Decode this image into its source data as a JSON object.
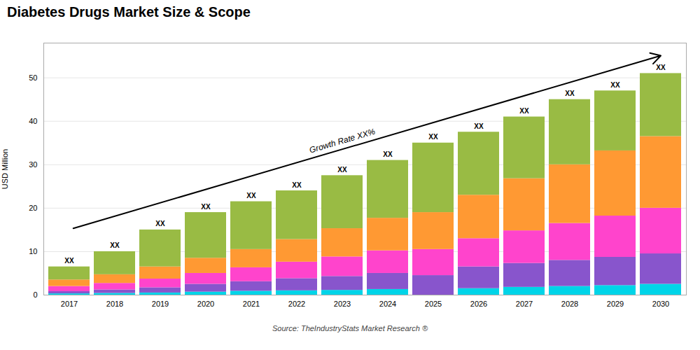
{
  "chart_data": {
    "type": "bar",
    "stacked": true,
    "title": "Diabetes Drugs Market Size & Scope",
    "ylabel": "USD Million",
    "caption": "Source: TheIndustryStats Market Research ®",
    "annotations": [
      "Growth Rate XX%"
    ],
    "categories": [
      "2017",
      "2018",
      "2019",
      "2020",
      "2021",
      "2022",
      "2023",
      "2024",
      "2025",
      "2026",
      "2027",
      "2028",
      "2029",
      "2030"
    ],
    "total_labels": [
      "XX",
      "XX",
      "XX",
      "XX",
      "XX",
      "XX",
      "XX",
      "XX",
      "XX",
      "XX",
      "XX",
      "XX",
      "XX",
      "XX"
    ],
    "series": [
      {
        "color": "#00d4e8",
        "values": [
          0.3,
          0.4,
          0.5,
          0.7,
          0.9,
          1.0,
          1.1,
          1.3,
          0.0,
          1.5,
          1.8,
          2.0,
          2.2,
          2.5
        ]
      },
      {
        "color": "#8855cc",
        "values": [
          0.5,
          0.8,
          1.2,
          1.8,
          2.2,
          2.8,
          3.2,
          3.7,
          4.5,
          5.0,
          5.5,
          6.0,
          6.5,
          7.0
        ]
      },
      {
        "color": "#ff44cc",
        "values": [
          1.2,
          1.5,
          2.0,
          2.5,
          3.2,
          3.8,
          4.5,
          5.2,
          6.0,
          6.5,
          7.5,
          8.5,
          9.5,
          10.5
        ]
      },
      {
        "color": "#ff9933",
        "values": [
          1.5,
          2.0,
          2.8,
          3.5,
          4.2,
          5.2,
          6.5,
          7.5,
          8.5,
          10.0,
          12.0,
          13.5,
          15.0,
          16.5
        ]
      },
      {
        "color": "#99bb44",
        "values": [
          3.0,
          5.3,
          8.5,
          10.5,
          11.0,
          11.2,
          12.2,
          13.3,
          16.0,
          14.5,
          14.2,
          15.0,
          13.8,
          14.5
        ]
      }
    ],
    "ylim": [
      0,
      58
    ],
    "yticks": [
      0,
      10,
      20,
      30,
      40,
      50
    ],
    "grid": true
  }
}
